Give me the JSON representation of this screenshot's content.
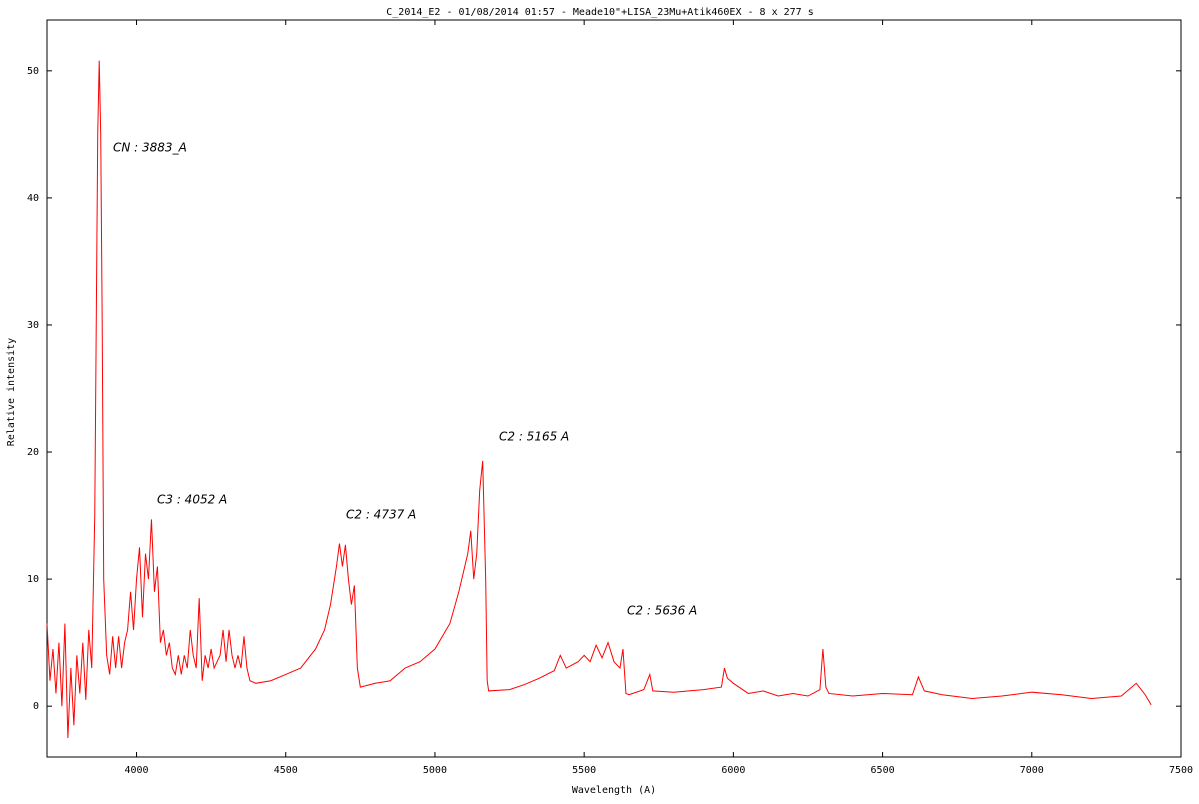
{
  "chart_data": {
    "type": "line",
    "title": "C_2014_E2 - 01/08/2014 01:57 - Meade10\"+LISA_23Mu+Atik460EX - 8 x 277 s",
    "x_label": "Wavelength (A)",
    "y_label": "Relative intensity",
    "annotations": [
      "CN : 3883_A",
      "C3 : 4052 A",
      "C2 : 4737 A",
      "C2 : 5165 A",
      "C2 : 5636 A"
    ],
    "xlim": [
      3700,
      7500
    ],
    "xticks": [
      4000,
      4500,
      5000,
      5500,
      6000,
      6500,
      7000,
      7500
    ],
    "ylim": [
      -4,
      54
    ],
    "yticks": [
      0,
      10,
      20,
      30,
      40,
      50
    ],
    "grid": false,
    "color": "#ff0000",
    "x": [
      3700,
      3710,
      3720,
      3730,
      3740,
      3750,
      3760,
      3770,
      3780,
      3790,
      3800,
      3810,
      3820,
      3830,
      3840,
      3850,
      3860,
      3870,
      3875,
      3880,
      3885,
      3890,
      3900,
      3910,
      3920,
      3930,
      3940,
      3950,
      3960,
      3970,
      3980,
      3990,
      4000,
      4010,
      4020,
      4030,
      4040,
      4050,
      4060,
      4070,
      4080,
      4090,
      4100,
      4110,
      4120,
      4130,
      4140,
      4150,
      4160,
      4170,
      4180,
      4190,
      4200,
      4210,
      4220,
      4230,
      4240,
      4250,
      4260,
      4270,
      4280,
      4290,
      4300,
      4310,
      4320,
      4330,
      4340,
      4350,
      4360,
      4370,
      4380,
      4400,
      4450,
      4500,
      4550,
      4600,
      4630,
      4650,
      4670,
      4680,
      4690,
      4700,
      4710,
      4720,
      4730,
      4740,
      4750,
      4800,
      4850,
      4900,
      4950,
      5000,
      5050,
      5080,
      5100,
      5110,
      5120,
      5130,
      5140,
      5150,
      5160,
      5170,
      5175,
      5180,
      5250,
      5300,
      5350,
      5400,
      5420,
      5440,
      5480,
      5500,
      5520,
      5540,
      5560,
      5580,
      5600,
      5620,
      5630,
      5640,
      5650,
      5700,
      5720,
      5730,
      5800,
      5900,
      5960,
      5970,
      5980,
      6000,
      6050,
      6100,
      6150,
      6200,
      6250,
      6290,
      6300,
      6310,
      6320,
      6400,
      6500,
      6600,
      6620,
      6640,
      6700,
      6800,
      6900,
      7000,
      7100,
      7200,
      7300,
      7350,
      7380,
      7400
    ],
    "values": [
      6.5,
      2,
      4.5,
      1,
      5,
      0,
      6.5,
      -2.5,
      3,
      -1.5,
      4,
      1,
      5,
      0.5,
      6,
      3,
      15,
      45,
      50.8,
      45,
      30,
      10,
      4,
      2.5,
      5.5,
      3,
      5.5,
      3,
      5,
      6,
      9,
      6,
      10,
      12.5,
      7,
      12,
      10,
      14.7,
      9,
      11,
      5,
      6,
      4,
      5,
      3,
      2.5,
      4,
      2.5,
      4,
      3,
      6,
      4,
      3,
      8.5,
      2,
      4,
      3,
      4.5,
      3,
      3.5,
      4,
      6,
      3.5,
      6,
      4,
      3,
      4,
      3,
      5.5,
      3,
      2,
      1.8,
      2,
      2.5,
      3,
      4.5,
      6,
      8,
      11,
      12.8,
      11,
      12.7,
      10,
      8,
      9.5,
      3,
      1.5,
      1.8,
      2,
      3,
      3.5,
      4.5,
      6.5,
      9,
      11,
      12,
      13.8,
      10,
      12,
      17,
      19.3,
      10,
      2,
      1.2,
      1.3,
      1.7,
      2.2,
      2.8,
      4,
      3,
      3.5,
      4,
      3.5,
      4.8,
      3.8,
      5,
      3.5,
      3,
      4.5,
      1,
      0.9,
      1.3,
      2.5,
      1.2,
      1.1,
      1.3,
      1.5,
      3,
      2.2,
      1.8,
      1,
      1.2,
      0.8,
      1,
      0.8,
      1.3,
      4.5,
      1.5,
      1,
      0.8,
      1,
      0.9,
      2.3,
      1.2,
      0.9,
      0.6,
      0.8,
      1.1,
      0.9,
      0.6,
      0.8,
      1.8,
      0.9,
      0.1
    ]
  }
}
